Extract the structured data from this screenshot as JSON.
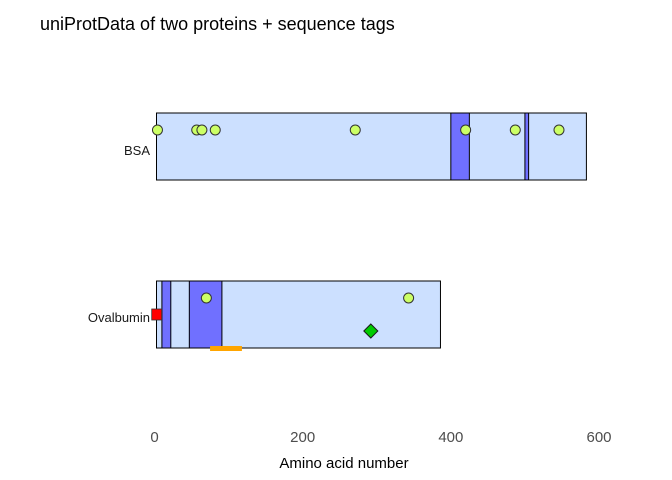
{
  "chart_data": {
    "type": "other",
    "title": "uniProtData of two proteins + sequence tags",
    "xlabel": "Amino acid number",
    "ylabel": "",
    "xlim": [
      0,
      600
    ],
    "xticks": [
      0,
      200,
      400,
      600
    ],
    "grid": false,
    "colors": {
      "protein_fill": "#cce0ff",
      "domain_fill": "#7070ff",
      "outline": "#000000",
      "site_fill": "#ccff66",
      "tag_square": "#ff0000",
      "tag_diamond": "#00cc00",
      "tag_bar": "#ffa500"
    },
    "proteins": [
      {
        "name": "BSA",
        "start": 1,
        "end": 583,
        "domains": [
          {
            "start": 400,
            "end": 425
          },
          {
            "start": 500,
            "end": 505
          }
        ],
        "sites": [
          4,
          57,
          64,
          82,
          271,
          420,
          487,
          546
        ],
        "tags": []
      },
      {
        "name": "Ovalbumin",
        "start": 1,
        "end": 386,
        "domains": [
          {
            "start": 10,
            "end": 22
          },
          {
            "start": 47,
            "end": 91
          }
        ],
        "sites": [
          70,
          343
        ],
        "tags": [
          {
            "shape": "square",
            "position": 3,
            "color": "#ff0000"
          },
          {
            "shape": "diamond",
            "position": 292,
            "color": "#00cc00"
          },
          {
            "shape": "bar",
            "start": 75,
            "end": 118,
            "color": "#ffa500"
          }
        ]
      }
    ]
  }
}
